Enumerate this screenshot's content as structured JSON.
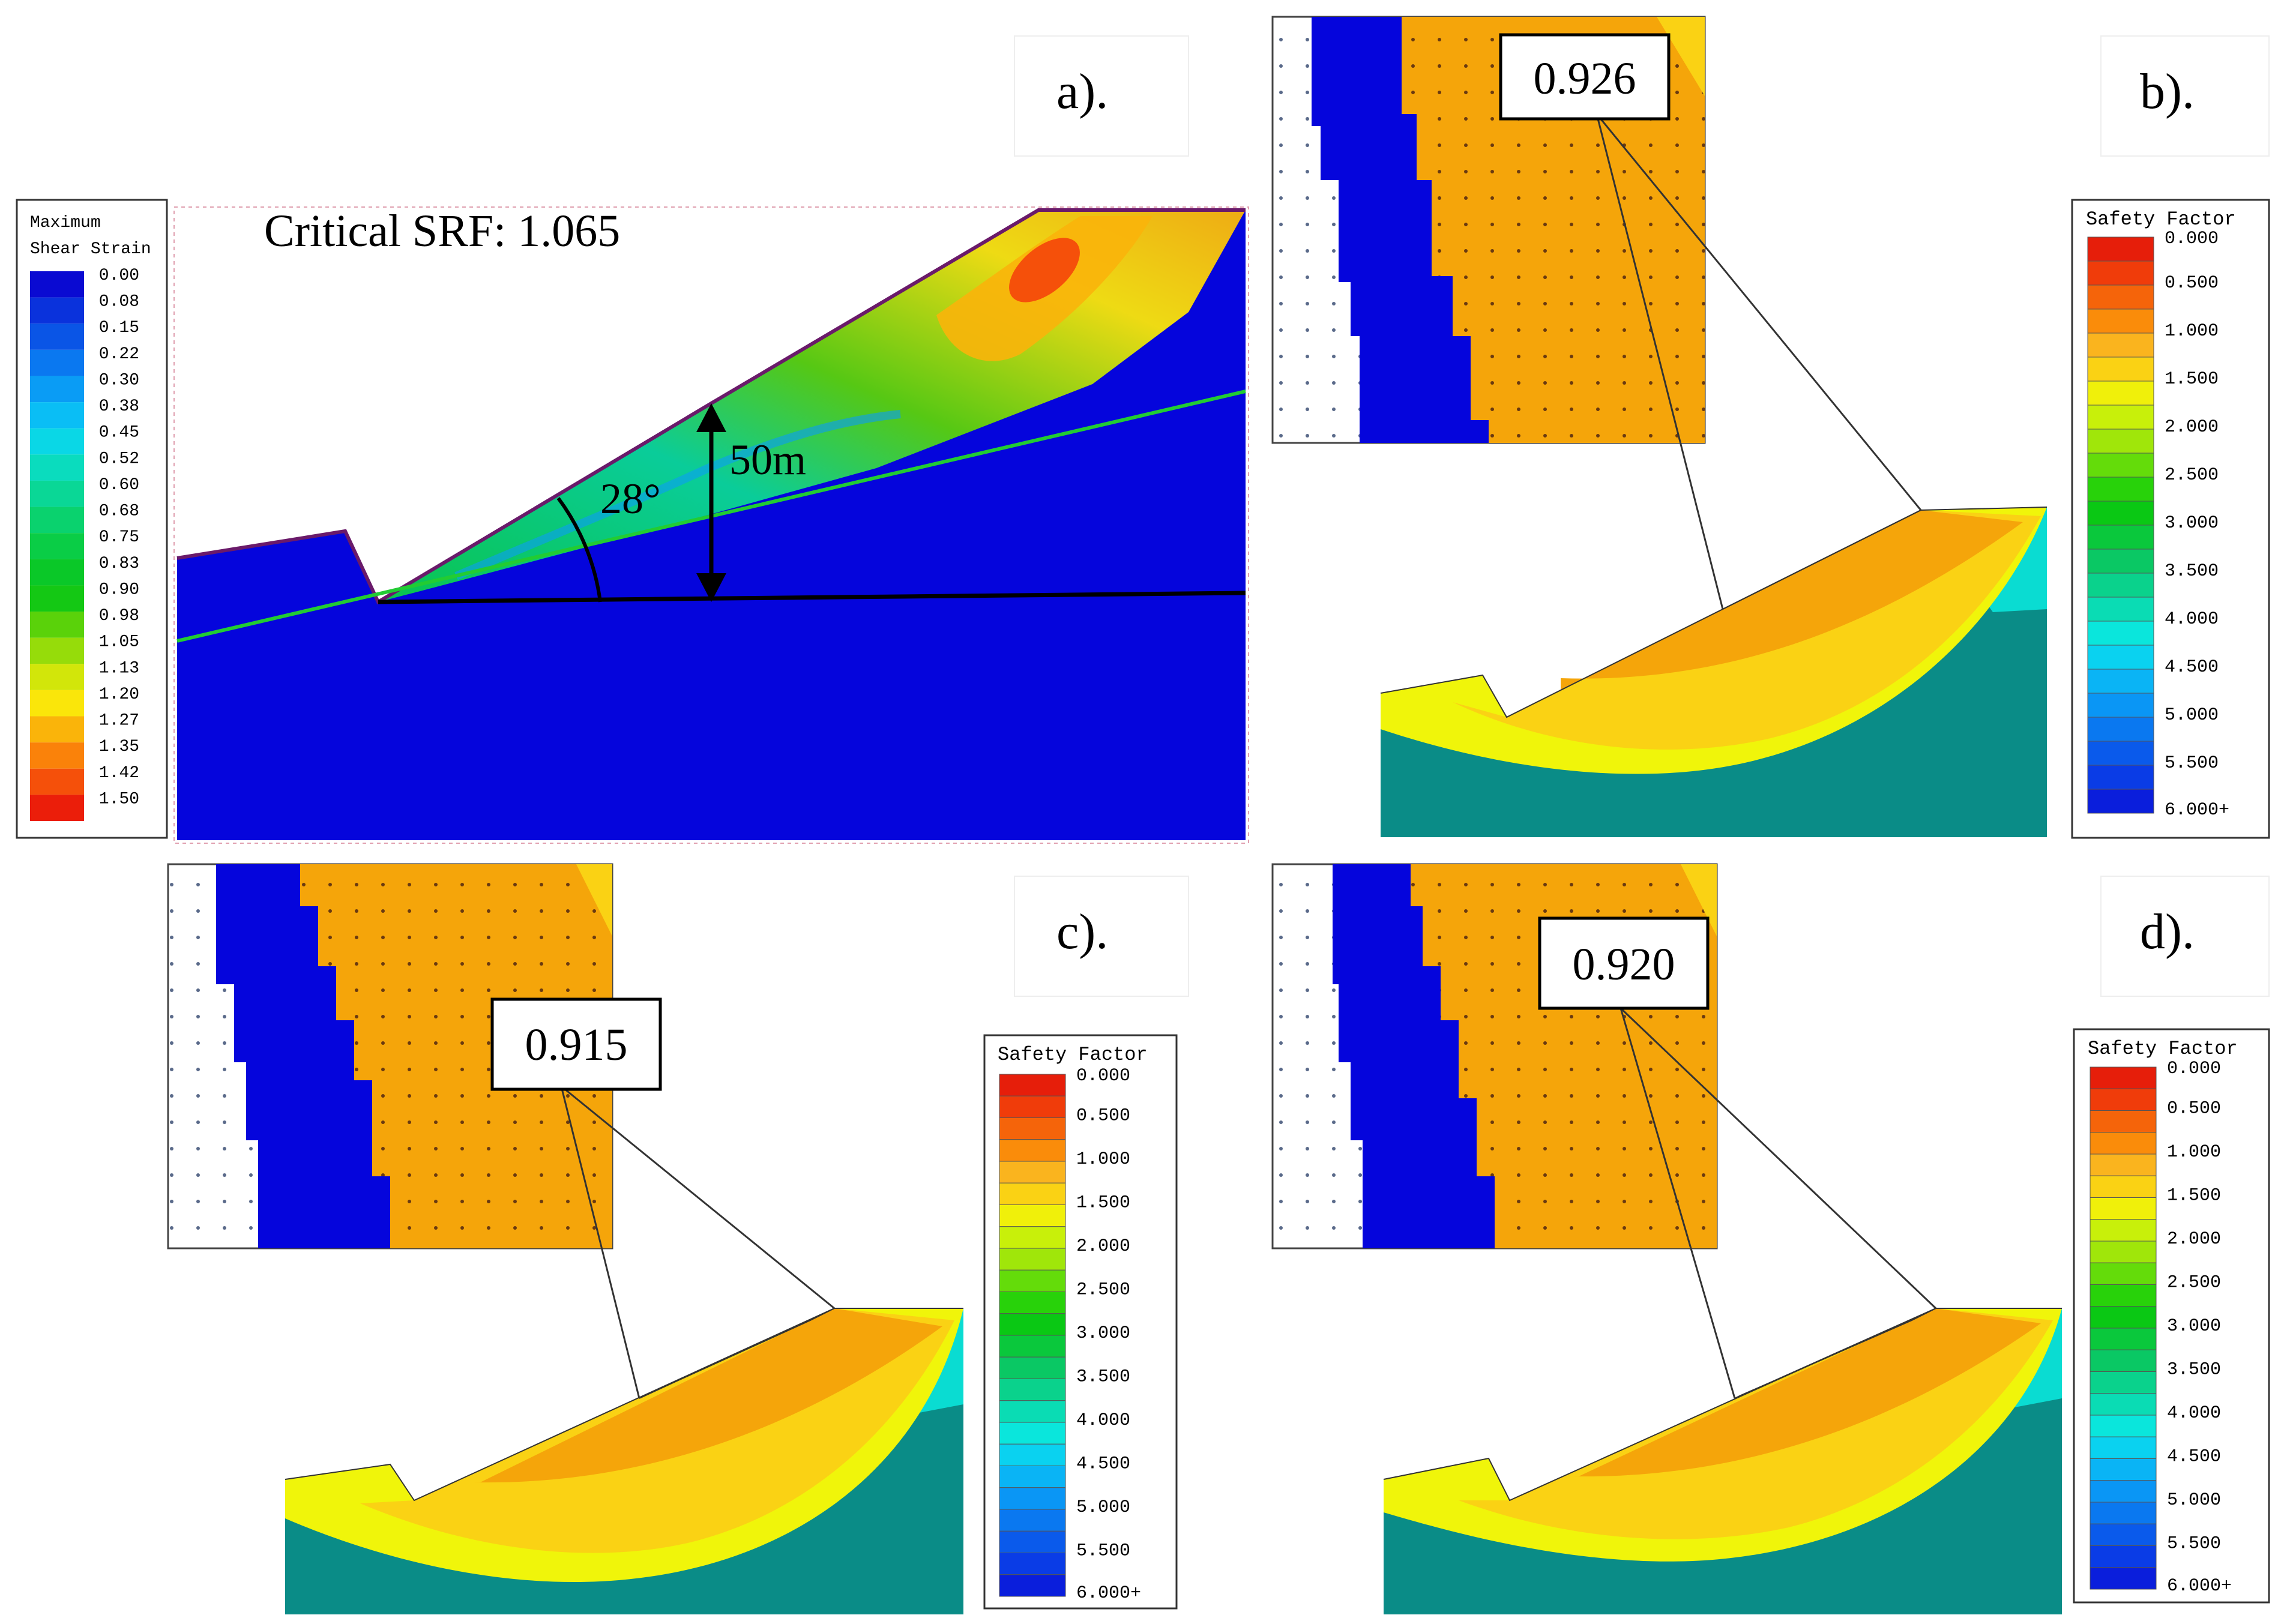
{
  "panels": {
    "a": {
      "label": "a).",
      "srf_text": "Critical SRF: 1.065",
      "angle_label": "28°",
      "height_label": "50m",
      "legend": {
        "title_line1": "Maximum",
        "title_line2": "Shear Strain",
        "values": [
          "0.00",
          "0.08",
          "0.15",
          "0.22",
          "0.30",
          "0.38",
          "0.45",
          "0.52",
          "0.60",
          "0.68",
          "0.75",
          "0.83",
          "0.90",
          "0.98",
          "1.05",
          "1.13",
          "1.20",
          "1.27",
          "1.35",
          "1.42",
          "1.50"
        ]
      }
    },
    "b": {
      "label": "b).",
      "factor_value": "0.926"
    },
    "c": {
      "label": "c).",
      "factor_value": "0.915"
    },
    "d": {
      "label": "d).",
      "factor_value": "0.920"
    }
  },
  "safety_legend": {
    "title": "Safety Factor",
    "values": [
      "0.000",
      "0.500",
      "1.000",
      "1.500",
      "2.000",
      "2.500",
      "3.000",
      "3.500",
      "4.000",
      "4.500",
      "5.000",
      "5.500",
      "6.000+"
    ]
  },
  "colors": {
    "strain_ramp": [
      "#0a0ad2",
      "#0a32dc",
      "#0a55e6",
      "#0a78f0",
      "#0a9cf5",
      "#0abef5",
      "#0ad7e6",
      "#0adcbe",
      "#0ad796",
      "#0ad26e",
      "#0acd46",
      "#0ac828",
      "#14c814",
      "#5ad20a",
      "#96dc0a",
      "#d2e60a",
      "#fae60a",
      "#fab40a",
      "#fa820a",
      "#f5500a",
      "#eb1e0a"
    ],
    "safety_ramp": [
      "#e61e0a",
      "#f03c0a",
      "#f5640a",
      "#fa8c0a",
      "#fab41e",
      "#fad214",
      "#f0f00a",
      "#c8f00a",
      "#a0e60a",
      "#64dc0a",
      "#28d20a",
      "#0ac814",
      "#0ac83c",
      "#0ac864",
      "#0ad28c",
      "#0adcb4",
      "#0ae6dc",
      "#0ad2f0",
      "#0ab4f5",
      "#0a96f5",
      "#0a78f0",
      "#0a5aeb",
      "#0a3ce6",
      "#0a1edc"
    ],
    "soil_blue": "#0505dc",
    "bedrock_teal": "#0a8c87",
    "slip_orange": "#f5a50a",
    "slip_yellow": "#f0f50a"
  }
}
